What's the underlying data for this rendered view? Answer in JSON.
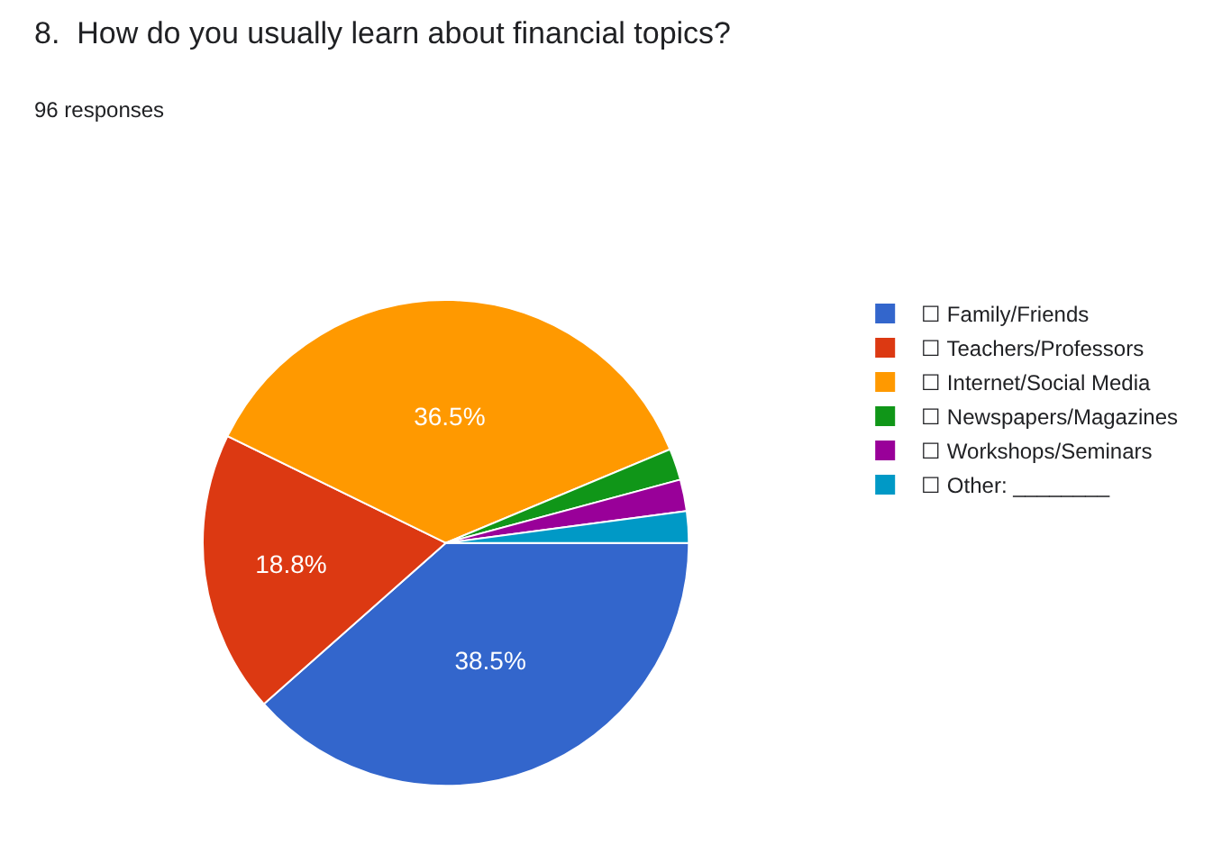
{
  "chart_data": {
    "type": "pie",
    "title": "8.  How do you usually learn about financial topics?",
    "subtitle": "96 responses",
    "categories": [
      "☐ Family/Friends",
      "☐ Teachers/Professors",
      "☐ Internet/Social Media",
      "☐ Newspapers/Magazines",
      "☐ Workshops/Seminars",
      "☐ Other: ________"
    ],
    "values": [
      38.5,
      18.8,
      36.5,
      2.1,
      2.1,
      2.1
    ],
    "value_labels": [
      "38.5%",
      "18.8%",
      "36.5%",
      null,
      null,
      null
    ],
    "colors": [
      "#3366cc",
      "#dc3912",
      "#ff9900",
      "#109618",
      "#990099",
      "#0099c6"
    ],
    "legend": "right"
  }
}
